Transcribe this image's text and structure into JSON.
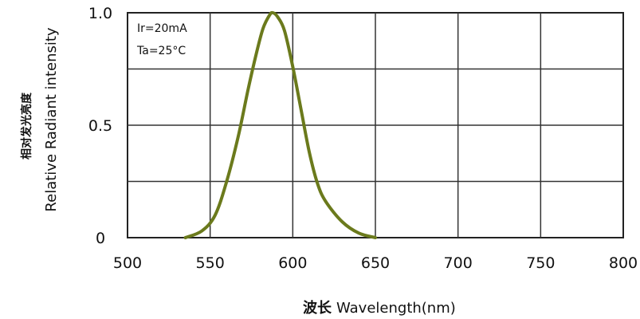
{
  "chart_data": {
    "type": "line",
    "title": "",
    "xlabel_cn": "波长",
    "xlabel": "Wavelength(nm)",
    "ylabel_cn": "相对发光亮度",
    "ylabel": "Relative  Radiant  intensity",
    "xlim": [
      500,
      800
    ],
    "ylim": [
      0,
      1.0
    ],
    "x_ticks": [
      500,
      550,
      600,
      650,
      700,
      750,
      800
    ],
    "y_ticks": [
      0,
      0.25,
      0.5,
      0.75,
      1.0
    ],
    "y_tick_labels": [
      "0",
      "",
      "0.5",
      "",
      "1.0"
    ],
    "grid": true,
    "annotations": [
      "Ir=20mA",
      "Ta=25°C"
    ],
    "series_color": "#6b7a1c",
    "series": [
      {
        "x": [
          535,
          545,
          553,
          560,
          567,
          573,
          578,
          582,
          586,
          588,
          591,
          595,
          600,
          605,
          610,
          615,
          620,
          630,
          640,
          650
        ],
        "y": [
          0.0,
          0.03,
          0.1,
          0.25,
          0.45,
          0.66,
          0.82,
          0.93,
          0.99,
          1.0,
          0.98,
          0.92,
          0.76,
          0.57,
          0.38,
          0.24,
          0.16,
          0.07,
          0.02,
          0.0
        ]
      }
    ]
  }
}
